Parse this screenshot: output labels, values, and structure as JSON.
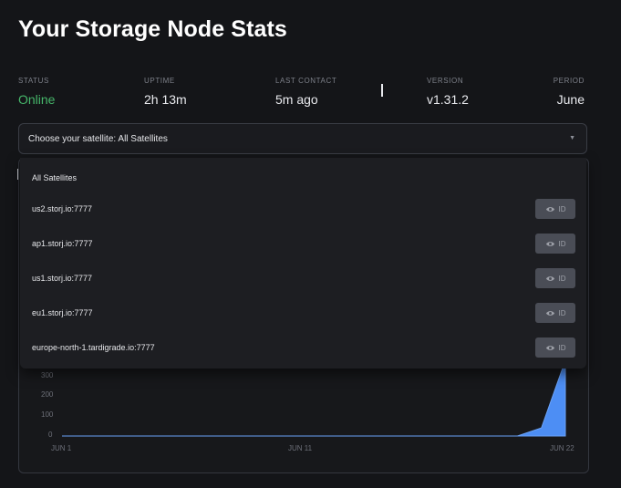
{
  "page": {
    "title": "Your Storage Node Stats"
  },
  "stats": [
    {
      "label": "STATUS",
      "value": "Online"
    },
    {
      "label": "UPTIME",
      "value": "2h 13m"
    },
    {
      "label": "LAST CONTACT",
      "value": "5m ago"
    },
    {
      "label": "VERSION",
      "value": "v1.31.2"
    },
    {
      "label": "PERIOD",
      "value": "June"
    }
  ],
  "satellite_select": {
    "label": "Choose your satellite:",
    "selected": "All Satellites",
    "caret_icon": "chevron-down-icon"
  },
  "dropdown": {
    "header": "All Satellites",
    "items": [
      {
        "name": "us2.storj.io:7777",
        "id_button": "ID"
      },
      {
        "name": "ap1.storj.io:7777",
        "id_button": "ID"
      },
      {
        "name": "us1.storj.io:7777",
        "id_button": "ID"
      },
      {
        "name": "eu1.storj.io:7777",
        "id_button": "ID"
      },
      {
        "name": "europe-north-1.tardigrade.io:7777",
        "id_button": "ID"
      }
    ]
  },
  "chart_data": {
    "type": "area",
    "y_ticks": [
      "300",
      "200",
      "100",
      "0"
    ],
    "x_ticks": [
      "JUN 1",
      "JUN 11",
      "JUN 22"
    ],
    "fill_color": "#4d8ef4",
    "x": [
      1,
      20,
      21,
      22
    ],
    "values": [
      0,
      0,
      40,
      380
    ],
    "ylim": [
      0,
      300
    ],
    "xlim": [
      1,
      22
    ]
  },
  "colors": {
    "online": "#46b66a",
    "background": "#141518"
  }
}
